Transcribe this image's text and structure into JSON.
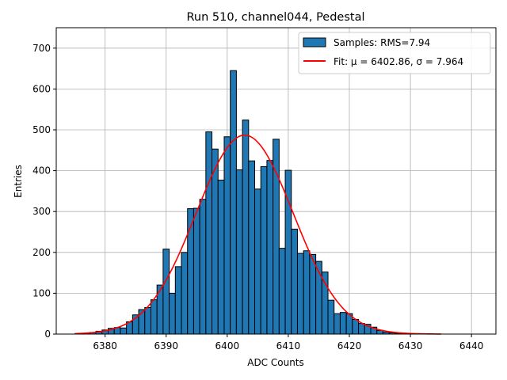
{
  "chart_data": {
    "type": "bar",
    "title": "Run 510, channel044, Pedestal",
    "xlabel": "ADC Counts",
    "ylabel": "Entries",
    "xlim": [
      6372,
      6444
    ],
    "ylim": [
      0,
      750
    ],
    "x_ticks": [
      6380,
      6390,
      6400,
      6410,
      6420,
      6430,
      6440
    ],
    "y_ticks": [
      0,
      100,
      200,
      300,
      400,
      500,
      600,
      700
    ],
    "grid": true,
    "legend_position": "top-right",
    "bin_width": 1,
    "bins": [
      {
        "x": 6376,
        "value": 1
      },
      {
        "x": 6377,
        "value": 2
      },
      {
        "x": 6378,
        "value": 4
      },
      {
        "x": 6379,
        "value": 7
      },
      {
        "x": 6380,
        "value": 10
      },
      {
        "x": 6381,
        "value": 14
      },
      {
        "x": 6382,
        "value": 16
      },
      {
        "x": 6383,
        "value": 15
      },
      {
        "x": 6384,
        "value": 30
      },
      {
        "x": 6385,
        "value": 47
      },
      {
        "x": 6386,
        "value": 60
      },
      {
        "x": 6387,
        "value": 65
      },
      {
        "x": 6388,
        "value": 84
      },
      {
        "x": 6389,
        "value": 120
      },
      {
        "x": 6390,
        "value": 208
      },
      {
        "x": 6391,
        "value": 100
      },
      {
        "x": 6392,
        "value": 165
      },
      {
        "x": 6393,
        "value": 200
      },
      {
        "x": 6394,
        "value": 307
      },
      {
        "x": 6395,
        "value": 308
      },
      {
        "x": 6396,
        "value": 330
      },
      {
        "x": 6397,
        "value": 495
      },
      {
        "x": 6398,
        "value": 453
      },
      {
        "x": 6399,
        "value": 377
      },
      {
        "x": 6400,
        "value": 483
      },
      {
        "x": 6401,
        "value": 645
      },
      {
        "x": 6402,
        "value": 402
      },
      {
        "x": 6403,
        "value": 524
      },
      {
        "x": 6404,
        "value": 424
      },
      {
        "x": 6405,
        "value": 355
      },
      {
        "x": 6406,
        "value": 410
      },
      {
        "x": 6407,
        "value": 425
      },
      {
        "x": 6408,
        "value": 477
      },
      {
        "x": 6409,
        "value": 210
      },
      {
        "x": 6410,
        "value": 401
      },
      {
        "x": 6411,
        "value": 257
      },
      {
        "x": 6412,
        "value": 197
      },
      {
        "x": 6413,
        "value": 204
      },
      {
        "x": 6414,
        "value": 195
      },
      {
        "x": 6415,
        "value": 178
      },
      {
        "x": 6416,
        "value": 152
      },
      {
        "x": 6417,
        "value": 83
      },
      {
        "x": 6418,
        "value": 50
      },
      {
        "x": 6419,
        "value": 53
      },
      {
        "x": 6420,
        "value": 50
      },
      {
        "x": 6421,
        "value": 36
      },
      {
        "x": 6422,
        "value": 26
      },
      {
        "x": 6423,
        "value": 24
      },
      {
        "x": 6424,
        "value": 17
      },
      {
        "x": 6425,
        "value": 9
      },
      {
        "x": 6426,
        "value": 5
      },
      {
        "x": 6427,
        "value": 3
      },
      {
        "x": 6428,
        "value": 2
      },
      {
        "x": 6429,
        "value": 1
      }
    ],
    "fit": {
      "mu": 6402.86,
      "sigma": 7.964,
      "amplitude": 487,
      "x_range": [
        6375,
        6435
      ]
    },
    "series": [
      {
        "name": "Samples: RMS=7.94",
        "kind": "histogram",
        "color": "#1f77b4"
      },
      {
        "name": "Fit: μ = 6402.86, σ = 7.964",
        "kind": "line",
        "color": "#ff0000"
      }
    ]
  }
}
